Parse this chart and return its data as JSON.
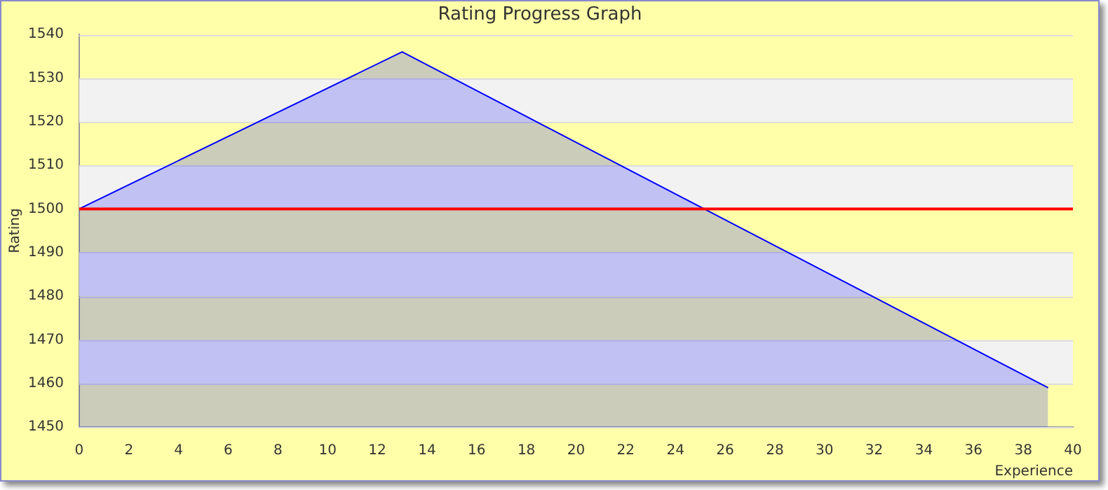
{
  "chart_data": {
    "type": "area",
    "title": "Rating Progress Graph",
    "xlabel": "Experience",
    "ylabel": "Rating",
    "x": [
      0,
      13,
      39
    ],
    "series": [
      {
        "color": "#0000ff",
        "values": [
          1500,
          1536,
          1459
        ]
      }
    ],
    "xlim": [
      0,
      40
    ],
    "xticks": [
      0,
      2,
      4,
      6,
      8,
      10,
      12,
      14,
      16,
      18,
      20,
      22,
      24,
      26,
      28,
      30,
      32,
      34,
      36,
      38,
      40
    ],
    "ylim": [
      1450,
      1540
    ],
    "yticks": [
      1450,
      1460,
      1470,
      1480,
      1490,
      1500,
      1510,
      1520,
      1530,
      1540
    ],
    "ref_lines": [
      {
        "axis": "y",
        "value": 1500,
        "color": "#ff0000"
      }
    ],
    "grid": "y",
    "legend": false
  }
}
